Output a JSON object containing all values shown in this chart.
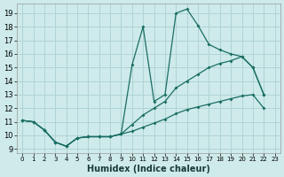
{
  "xlabel": "Humidex (Indice chaleur)",
  "bg_color": "#ceeaea",
  "grid_color": "#b0d4d4",
  "line_color": "#1a6e64",
  "xlim": [
    -0.5,
    23.5
  ],
  "ylim": [
    8.7,
    19.7
  ],
  "yticks": [
    9,
    10,
    11,
    12,
    13,
    14,
    15,
    16,
    17,
    18,
    19
  ],
  "xticks": [
    0,
    1,
    2,
    3,
    4,
    5,
    6,
    7,
    8,
    9,
    10,
    11,
    12,
    13,
    14,
    15,
    16,
    17,
    18,
    19,
    20,
    21,
    22,
    23
  ],
  "line1_x": [
    0,
    1,
    2,
    3,
    4,
    5,
    6,
    7,
    8,
    9,
    10,
    11,
    12,
    13,
    14,
    15,
    16,
    17,
    18,
    19,
    20,
    21,
    22
  ],
  "line1_y": [
    11.1,
    11.0,
    10.4,
    9.5,
    9.2,
    9.8,
    9.9,
    9.9,
    9.9,
    10.1,
    15.2,
    18.0,
    12.5,
    13.0,
    19.0,
    19.3,
    18.1,
    16.7,
    16.3,
    16.0,
    15.8,
    15.0,
    13.0
  ],
  "line2_x": [
    0,
    1,
    2,
    3,
    4,
    5,
    6,
    7,
    8,
    9,
    10,
    11,
    12,
    13,
    14,
    15,
    16,
    17,
    18,
    19,
    20,
    21,
    22
  ],
  "line2_y": [
    11.1,
    11.0,
    10.4,
    9.5,
    9.2,
    9.8,
    9.9,
    9.9,
    9.9,
    10.1,
    10.8,
    11.5,
    12.0,
    12.5,
    13.5,
    14.0,
    14.5,
    15.0,
    15.3,
    15.5,
    15.8,
    15.0,
    13.0
  ],
  "line3_x": [
    0,
    1,
    2,
    3,
    4,
    5,
    6,
    7,
    8,
    9,
    10,
    11,
    12,
    13,
    14,
    15,
    16,
    17,
    18,
    19,
    20,
    21,
    22
  ],
  "line3_y": [
    11.1,
    11.0,
    10.4,
    9.5,
    9.2,
    9.8,
    9.9,
    9.9,
    9.9,
    10.1,
    10.3,
    10.6,
    10.9,
    11.2,
    11.6,
    11.9,
    12.1,
    12.3,
    12.5,
    12.7,
    12.9,
    13.0,
    12.0
  ]
}
